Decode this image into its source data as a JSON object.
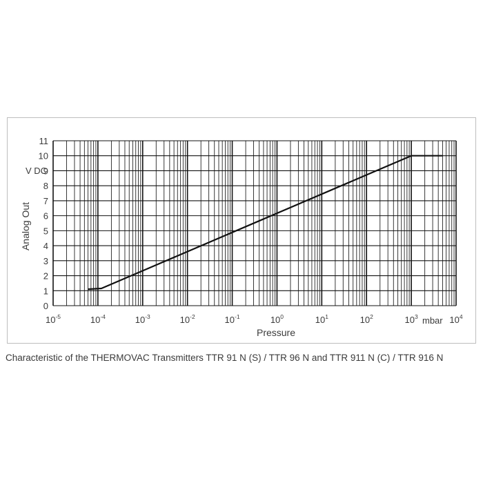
{
  "chart_data": {
    "type": "line",
    "title": "",
    "xlabel": "Pressure",
    "ylabel": "Analog Out",
    "y_unit_label": "V DC",
    "x_unit_label": "mbar",
    "x_scale": "log",
    "xlim": [
      1e-05,
      10000.0
    ],
    "ylim": [
      0,
      11
    ],
    "x_tick_labels": [
      {
        "base": "10",
        "exp": "-5"
      },
      {
        "base": "10",
        "exp": "-4"
      },
      {
        "base": "10",
        "exp": "-3"
      },
      {
        "base": "10",
        "exp": "-2"
      },
      {
        "base": "10",
        "exp": "-1"
      },
      {
        "base": "10",
        "exp": "0"
      },
      {
        "base": "10",
        "exp": "1"
      },
      {
        "base": "10",
        "exp": "2"
      },
      {
        "base": "10",
        "exp": "3"
      },
      {
        "base": "10",
        "exp": "4"
      }
    ],
    "y_ticks": [
      "0",
      "1",
      "2",
      "3",
      "4",
      "5",
      "6",
      "7",
      "8",
      "9",
      "10",
      "11"
    ],
    "grid": true,
    "series": [
      {
        "points": [
          {
            "x": 6e-05,
            "y": 1.1
          },
          {
            "x": 0.00012,
            "y": 1.15
          },
          {
            "x": 1000,
            "y": 10.0
          },
          {
            "x": 5000,
            "y": 10.0
          }
        ]
      }
    ]
  },
  "caption": "Characteristic of the THERMOVAC Transmitters TTR 91 N (S) / TTR 96 N and TTR 911 N (C) / TTR 916 N"
}
